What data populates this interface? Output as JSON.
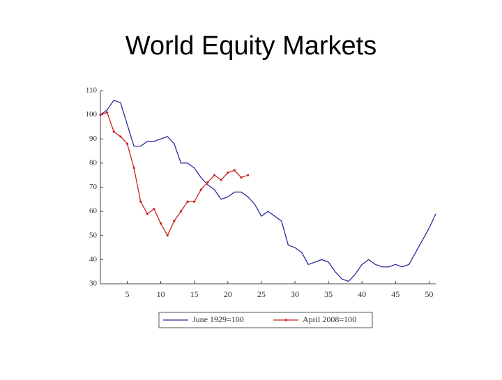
{
  "chart_data": {
    "type": "line",
    "title": "World Equity Markets",
    "x": [
      1,
      2,
      3,
      4,
      5,
      6,
      7,
      8,
      9,
      10,
      11,
      12,
      13,
      14,
      15,
      16,
      17,
      18,
      19,
      20,
      21,
      22,
      23,
      24,
      25,
      26,
      27,
      28,
      29,
      30,
      31,
      32,
      33,
      34,
      35,
      36,
      37,
      38,
      39,
      40,
      41,
      42,
      43,
      44,
      45,
      46,
      47,
      48,
      49,
      50,
      51
    ],
    "series": [
      {
        "name": "June 1929=100",
        "color": "#2a2a9a",
        "values": [
          100,
          102,
          106,
          105,
          96,
          87,
          87,
          89,
          89,
          90,
          91,
          88,
          80,
          80,
          78,
          74,
          71,
          69,
          65,
          66,
          68,
          68,
          66,
          63,
          58,
          60,
          58,
          56,
          46,
          45,
          43,
          38,
          39,
          40,
          39,
          35,
          32,
          31,
          34,
          38,
          40,
          38,
          37,
          37,
          38,
          37,
          38,
          43,
          48,
          53,
          59
        ]
      },
      {
        "name": "April 2008=100",
        "color": "#cc2222",
        "values": [
          100,
          101,
          93,
          91,
          88,
          78,
          64,
          59,
          61,
          55,
          50,
          56,
          60,
          64,
          64,
          69,
          72,
          75,
          73,
          76,
          77,
          74,
          75,
          null,
          null,
          null,
          null,
          null,
          null,
          null,
          null,
          null,
          null,
          null,
          null,
          null,
          null,
          null,
          null,
          null,
          null,
          null,
          null,
          null,
          null,
          null,
          null,
          null,
          null,
          null,
          null
        ]
      }
    ],
    "xlim": [
      1,
      51
    ],
    "xticks": [
      5,
      10,
      15,
      20,
      25,
      30,
      35,
      40,
      45,
      50
    ],
    "ylim": [
      30,
      110
    ],
    "yticks": [
      30,
      40,
      50,
      60,
      70,
      80,
      90,
      100,
      110
    ],
    "legend": "bottom"
  }
}
